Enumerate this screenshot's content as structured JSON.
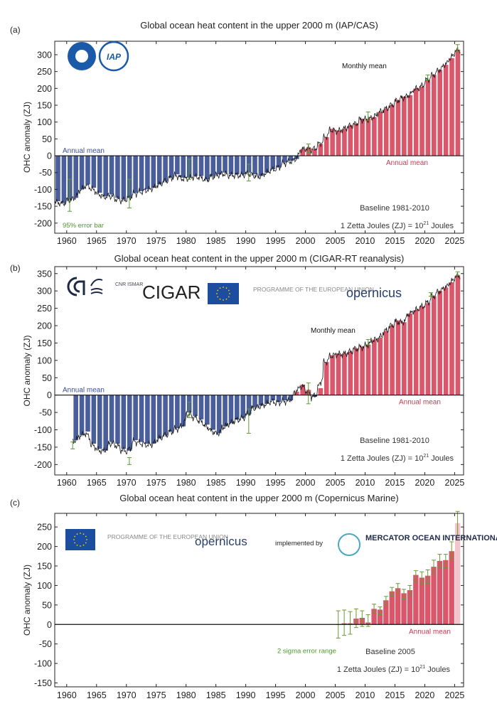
{
  "chart_data": [
    {
      "panel_label": "(a)",
      "type": "bar",
      "title": "Global ocean heat content in the upper 2000 m (IAP/CAS)",
      "ylabel": "OHC anomaly (ZJ)",
      "ylim": [
        -230,
        340
      ],
      "xlim": [
        1958,
        2026.5
      ],
      "yticks": [
        300,
        250,
        200,
        150,
        100,
        50,
        0,
        -50,
        -100,
        -150,
        -200
      ],
      "xticks": [
        1960,
        1965,
        1970,
        1975,
        1980,
        1985,
        1990,
        1995,
        2000,
        2005,
        2010,
        2015,
        2020,
        2025
      ],
      "logos": [
        "CAS",
        "IAP"
      ],
      "annotations": {
        "annual_mean_neg": "Annual mean",
        "monthly_mean": "Monthly mean",
        "annual_mean_pos": "Annual mean",
        "error_bar": "95% error bar",
        "baseline": "Baseline 1981-2010",
        "unit_prefix": "1 Zetta Joules (ZJ) = 10",
        "unit_exp": "21",
        "unit_suffix": " Joules"
      },
      "colors": {
        "negative": "#4a5e9c",
        "positive": "#d9566b",
        "monthly": "#1a1a1a",
        "error": "#5e9a2e"
      },
      "years": [
        1958,
        1959,
        1960,
        1961,
        1962,
        1963,
        1964,
        1965,
        1966,
        1967,
        1968,
        1969,
        1970,
        1971,
        1972,
        1973,
        1974,
        1975,
        1976,
        1977,
        1978,
        1979,
        1980,
        1981,
        1982,
        1983,
        1984,
        1985,
        1986,
        1987,
        1988,
        1989,
        1990,
        1991,
        1992,
        1993,
        1994,
        1995,
        1996,
        1997,
        1998,
        1999,
        2000,
        2001,
        2002,
        2003,
        2004,
        2005,
        2006,
        2007,
        2008,
        2009,
        2010,
        2011,
        2012,
        2013,
        2014,
        2015,
        2016,
        2017,
        2018,
        2019,
        2020,
        2021,
        2022,
        2023,
        2024,
        2025
      ],
      "annual": [
        -135,
        -140,
        -130,
        -125,
        -100,
        -85,
        -95,
        -110,
        -120,
        -115,
        -125,
        -130,
        -125,
        -110,
        -105,
        -100,
        -95,
        -85,
        -75,
        -65,
        -55,
        -65,
        -65,
        -60,
        -60,
        -70,
        -60,
        -55,
        -50,
        -55,
        -55,
        -55,
        -50,
        -55,
        -60,
        -50,
        -40,
        -35,
        -20,
        -15,
        -10,
        20,
        25,
        20,
        35,
        55,
        80,
        75,
        80,
        90,
        95,
        110,
        110,
        115,
        130,
        140,
        150,
        165,
        175,
        180,
        200,
        205,
        225,
        240,
        255,
        270,
        290,
        315
      ],
      "error_bars": [
        {
          "x": 1960.5,
          "lo": -165,
          "hi": -70
        },
        {
          "x": 1970.5,
          "lo": -155,
          "hi": -70
        },
        {
          "x": 1980.5,
          "lo": -70,
          "hi": -10
        },
        {
          "x": 1990.5,
          "lo": -75,
          "hi": -25
        },
        {
          "x": 2000.5,
          "lo": 10,
          "hi": 35
        },
        {
          "x": 2010.5,
          "lo": 105,
          "hi": 130
        },
        {
          "x": 2020.5,
          "lo": 225,
          "hi": 240
        },
        {
          "x": 2025.5,
          "lo": 310,
          "hi": 330
        }
      ]
    },
    {
      "panel_label": "(b)",
      "type": "bar",
      "title": "Global ocean heat content in the upper 2000 m (CIGAR-RT reanalysis)",
      "ylabel": "OHC anomaly (ZJ)",
      "ylim": [
        -230,
        370
      ],
      "xlim": [
        1958,
        2026.5
      ],
      "yticks": [
        350,
        300,
        250,
        200,
        150,
        100,
        50,
        0,
        -50,
        -100,
        -150,
        -200
      ],
      "xticks": [
        1960,
        1965,
        1970,
        1975,
        1980,
        1985,
        1990,
        1995,
        2000,
        2005,
        2010,
        2015,
        2020,
        2025
      ],
      "logos": [
        "CNR ISMAR",
        "CIGAR",
        "EU",
        "PROGRAMME OF THE EUROPEAN UNION",
        "opernicus"
      ],
      "annotations": {
        "annual_mean_neg": "Annual mean",
        "monthly_mean": "Monthly mean",
        "annual_mean_pos": "Annual mean",
        "baseline": "Baseline 1981-2010",
        "unit_prefix": "1 Zetta Joules (ZJ) = 10",
        "unit_exp": "21",
        "unit_suffix": " Joules"
      },
      "colors": {
        "negative": "#4a5e9c",
        "positive": "#d9566b",
        "monthly": "#1a1a1a",
        "error": "#5e9a2e"
      },
      "years": [
        1961,
        1962,
        1963,
        1964,
        1965,
        1966,
        1967,
        1968,
        1969,
        1970,
        1971,
        1972,
        1973,
        1974,
        1975,
        1976,
        1977,
        1978,
        1979,
        1980,
        1981,
        1982,
        1983,
        1984,
        1985,
        1986,
        1987,
        1988,
        1989,
        1990,
        1991,
        1992,
        1993,
        1994,
        1995,
        1996,
        1997,
        1998,
        1999,
        2000,
        2001,
        2002,
        2003,
        2004,
        2005,
        2006,
        2007,
        2008,
        2009,
        2010,
        2011,
        2012,
        2013,
        2014,
        2015,
        2016,
        2017,
        2018,
        2019,
        2020,
        2021,
        2022,
        2023,
        2024,
        2025
      ],
      "annual": [
        -130,
        -115,
        -105,
        -140,
        -155,
        -160,
        -135,
        -140,
        -155,
        -160,
        -130,
        -135,
        -140,
        -140,
        -125,
        -115,
        -105,
        -95,
        -90,
        -50,
        -60,
        -70,
        -85,
        -100,
        -110,
        -90,
        -80,
        -70,
        -65,
        -55,
        -35,
        -30,
        -25,
        -15,
        -20,
        -15,
        -15,
        10,
        30,
        15,
        -5,
        20,
        95,
        115,
        120,
        120,
        125,
        135,
        140,
        145,
        160,
        165,
        185,
        200,
        215,
        210,
        235,
        245,
        255,
        265,
        285,
        300,
        310,
        325,
        345
      ],
      "error_bars": [
        {
          "x": 1961,
          "lo": -155,
          "hi": -135
        },
        {
          "x": 1970.5,
          "lo": -200,
          "hi": -180
        },
        {
          "x": 1980.5,
          "lo": -65,
          "hi": -20
        },
        {
          "x": 1990.5,
          "lo": -110,
          "hi": -40
        },
        {
          "x": 2000.5,
          "lo": -25,
          "hi": 35
        },
        {
          "x": 2010.5,
          "lo": 145,
          "hi": 160
        },
        {
          "x": 2021,
          "lo": 285,
          "hi": 295
        },
        {
          "x": 2025.5,
          "lo": 345,
          "hi": 355
        }
      ]
    },
    {
      "panel_label": "(c)",
      "type": "bar",
      "title": "Global ocean heat content in the upper 2000 m (Copernicus Marine)",
      "ylabel": "OHC anomaly (ZJ)",
      "ylim": [
        -160,
        285
      ],
      "xlim": [
        1958,
        2026.5
      ],
      "yticks": [
        250,
        200,
        150,
        100,
        50,
        0,
        -50,
        -100,
        -150
      ],
      "xticks": [
        1960,
        1965,
        1970,
        1975,
        1980,
        1985,
        1990,
        1995,
        2000,
        2005,
        2010,
        2015,
        2020,
        2025
      ],
      "logos": [
        "EU",
        "PROGRAMME OF THE EUROPEAN UNION",
        "opernicus",
        "implemented by",
        "MERCATOR OCEAN INTERNATIONAL"
      ],
      "annotations": {
        "annual_mean_pos": "Annual mean",
        "error_bar": "2 sigma error range",
        "baseline": "Baseline 2005",
        "unit_prefix": "1 Zetta Joules (ZJ) = 10",
        "unit_exp": "21",
        "unit_suffix": " Joules"
      },
      "colors": {
        "positive": "#d9566b",
        "provisional": "#f2c4cc",
        "error": "#6a9a30"
      },
      "years": [
        2005,
        2006,
        2007,
        2008,
        2009,
        2010,
        2011,
        2012,
        2013,
        2014,
        2015,
        2016,
        2017,
        2018,
        2019,
        2020,
        2021,
        2022,
        2023,
        2024,
        2025
      ],
      "annual": [
        0,
        3,
        3,
        15,
        17,
        5,
        40,
        38,
        62,
        85,
        93,
        80,
        88,
        127,
        120,
        125,
        148,
        163,
        165,
        188,
        260
      ],
      "error_bars": [
        {
          "x": 2005.5,
          "lo": -35,
          "hi": 35
        },
        {
          "x": 2006.5,
          "lo": -28,
          "hi": 37
        },
        {
          "x": 2007.5,
          "lo": -25,
          "hi": 33
        },
        {
          "x": 2008.5,
          "lo": -8,
          "hi": 40
        },
        {
          "x": 2009.5,
          "lo": -5,
          "hi": 35
        },
        {
          "x": 2010.5,
          "lo": -5,
          "hi": 25
        },
        {
          "x": 2011.5,
          "lo": 28,
          "hi": 52
        },
        {
          "x": 2012.5,
          "lo": 25,
          "hi": 45
        },
        {
          "x": 2013.5,
          "lo": 50,
          "hi": 72
        },
        {
          "x": 2014.5,
          "lo": 72,
          "hi": 95
        },
        {
          "x": 2015.5,
          "lo": 78,
          "hi": 105
        },
        {
          "x": 2016.5,
          "lo": 65,
          "hi": 90
        },
        {
          "x": 2017.5,
          "lo": 75,
          "hi": 100
        },
        {
          "x": 2018.5,
          "lo": 110,
          "hi": 138
        },
        {
          "x": 2019.5,
          "lo": 100,
          "hi": 135
        },
        {
          "x": 2020.5,
          "lo": 105,
          "hi": 140
        },
        {
          "x": 2021.5,
          "lo": 130,
          "hi": 165
        },
        {
          "x": 2022.5,
          "lo": 145,
          "hi": 180
        },
        {
          "x": 2023.5,
          "lo": 145,
          "hi": 180
        },
        {
          "x": 2024.5,
          "lo": 165,
          "hi": 212
        },
        {
          "x": 2025.5,
          "lo": 228,
          "hi": 290
        }
      ]
    }
  ]
}
